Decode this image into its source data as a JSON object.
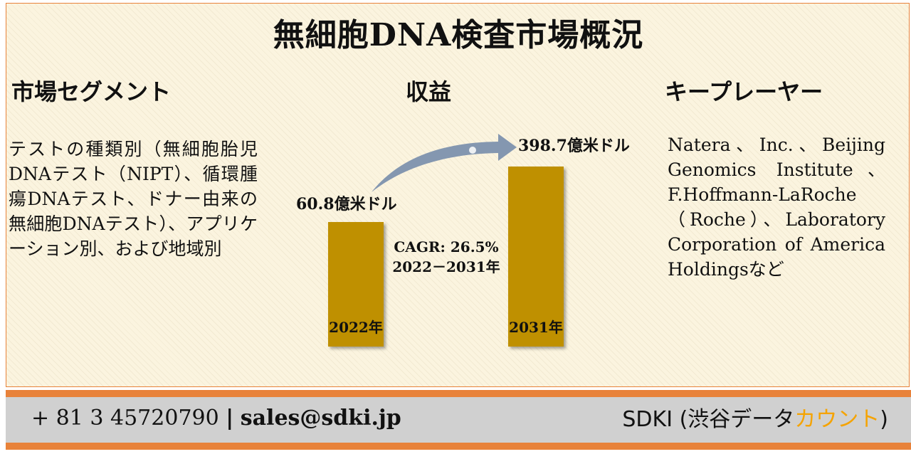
{
  "title": "無細胞DNA検査市場概況",
  "headings": {
    "segments": "市場セグメント",
    "revenue": "収益",
    "players": "キープレーヤー"
  },
  "segments_text": "テストの種類別（無細胞胎児DNAテスト（NIPT）、循環腫瘍DNAテスト、ドナー由来の無細胞DNAテスト）、アプリケーション別、および地域別",
  "players_text": "Natera、Inc.、Beijing Genomics Institute、F.Hoffmann-LaRoche（Roche）、Laboratory Corporation of America Holdingsなど",
  "chart_data": {
    "type": "bar",
    "categories": [
      "2022年",
      "2031年"
    ],
    "values": [
      60.8,
      398.7
    ],
    "value_labels": [
      "60.8億米ドル",
      "398.7億米ドル"
    ],
    "unit": "億米ドル",
    "annotation": {
      "cagr": "CAGR: 26.5%",
      "period": "2022－2031年"
    },
    "bar_color": "#bf9000",
    "arrow_color": "#8497b0"
  },
  "footer": {
    "phone": "+ 81 3 45720790",
    "separator": "|",
    "email": "sales@sdki.jp",
    "brand_main": "SDKI (渋谷データ",
    "brand_accent": "カウント",
    "brand_close": ")"
  },
  "colors": {
    "border": "#e8823a",
    "footer_bar": "#d0d0d0",
    "brand_accent": "#f5a300"
  }
}
